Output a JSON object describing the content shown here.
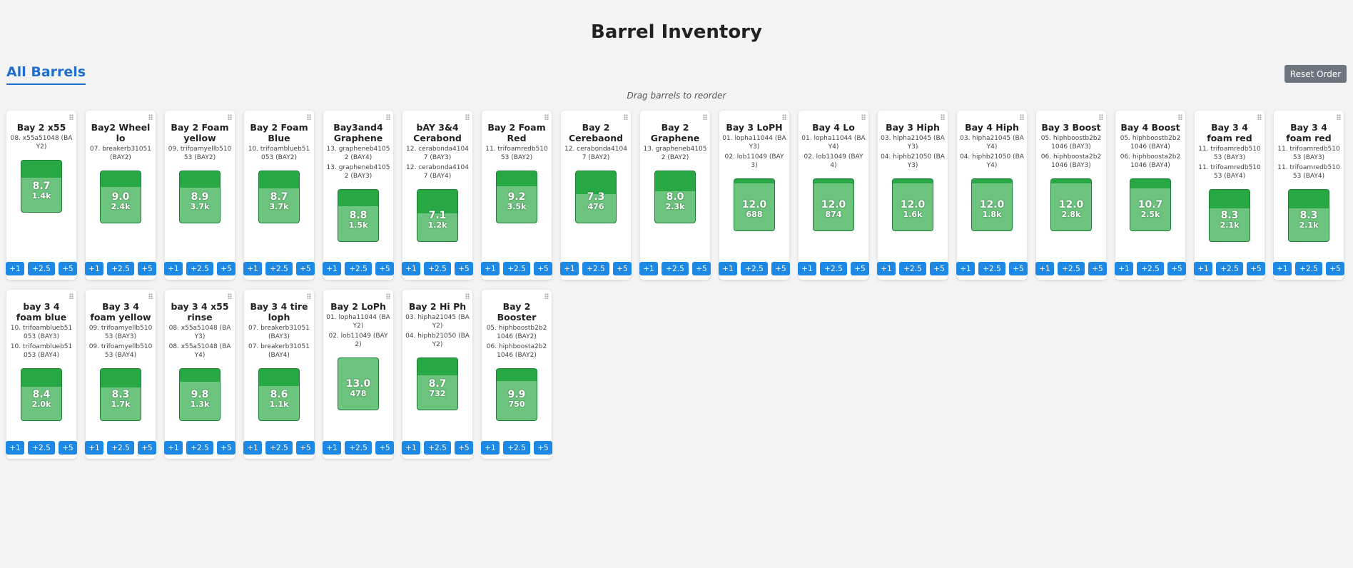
{
  "header": {
    "title": "Barrel Inventory",
    "tab": "All Barrels",
    "reset": "Reset Order",
    "hint": "Drag barrels to reorder"
  },
  "buttons": [
    "+1",
    "+2.5",
    "+5"
  ],
  "cards": [
    {
      "name": "Bay 2 x55",
      "items": [
        "08. x55a51048 (BAY2)"
      ],
      "level": "8.7",
      "count": "1.4k"
    },
    {
      "name": "Bay2 Wheel lo",
      "items": [
        "07. breakerb31051 (BAY2)"
      ],
      "level": "9.0",
      "count": "2.4k"
    },
    {
      "name": "Bay 2 Foam yellow",
      "items": [
        "09. trifoamyellb51053 (BAY2)"
      ],
      "level": "8.9",
      "count": "3.7k"
    },
    {
      "name": "Bay 2 Foam Blue",
      "items": [
        "10. trifoamblueb51053 (BAY2)"
      ],
      "level": "8.7",
      "count": "3.7k"
    },
    {
      "name": "Bay3and4 Graphene",
      "items": [
        "13. grapheneb41052 (BAY4)",
        "13. grapheneb41052 (BAY3)"
      ],
      "level": "8.8",
      "count": "1.5k"
    },
    {
      "name": "bAY 3&4 Cerabond",
      "items": [
        "12. cerabonda41047 (BAY3)",
        "12. cerabonda41047 (BAY4)"
      ],
      "level": "7.1",
      "count": "1.2k"
    },
    {
      "name": "Bay 2 Foam Red",
      "items": [
        "11. trifoamredb51053 (BAY2)"
      ],
      "level": "9.2",
      "count": "3.5k"
    },
    {
      "name": "Bay 2 Cerebaond",
      "items": [
        "12. cerabonda41047 (BAY2)"
      ],
      "level": "7.3",
      "count": "476"
    },
    {
      "name": "Bay 2 Graphene",
      "items": [
        "13. grapheneb41052 (BAY2)"
      ],
      "level": "8.0",
      "count": "2.3k"
    },
    {
      "name": "Bay 3 LoPH",
      "items": [
        "01. lopha11044 (BAY3)",
        "02. lob11049 (BAY3)"
      ],
      "level": "12.0",
      "count": "688"
    },
    {
      "name": "Bay 4 Lo",
      "items": [
        "01. lopha11044 (BAY4)",
        "02. lob11049 (BAY4)"
      ],
      "level": "12.0",
      "count": "874"
    },
    {
      "name": "Bay 3 Hiph",
      "items": [
        "03. hipha21045 (BAY3)",
        "04. hiphb21050 (BAY3)"
      ],
      "level": "12.0",
      "count": "1.6k"
    },
    {
      "name": "Bay 4 Hiph",
      "items": [
        "03. hipha21045 (BAY4)",
        "04. hiphb21050 (BAY4)"
      ],
      "level": "12.0",
      "count": "1.8k"
    },
    {
      "name": "Bay 3 Boost",
      "items": [
        "05. hiphboostb2b21046 (BAY3)",
        "06. hiphboosta2b21046 (BAY3)"
      ],
      "level": "12.0",
      "count": "2.8k"
    },
    {
      "name": "Bay 4 Boost",
      "items": [
        "05. hiphboostb2b21046 (BAY4)",
        "06. hiphboosta2b21046 (BAY4)"
      ],
      "level": "10.7",
      "count": "2.5k"
    },
    {
      "name": "Bay 3 4 foam red",
      "items": [
        "11. trifoamredb51053 (BAY3)",
        "11. trifoamredb51053 (BAY4)"
      ],
      "level": "8.3",
      "count": "2.1k"
    },
    {
      "name": "Bay 3 4 foam red",
      "items": [
        "11. trifoamredb51053 (BAY3)",
        "11. trifoamredb51053 (BAY4)"
      ],
      "level": "8.3",
      "count": "2.1k"
    },
    {
      "name": "bay 3 4 foam blue",
      "items": [
        "10. trifoamblueb51053 (BAY3)",
        "10. trifoamblueb51053 (BAY4)"
      ],
      "level": "8.4",
      "count": "2.0k"
    },
    {
      "name": "Bay 3 4 foam yellow",
      "items": [
        "09. trifoamyellb51053 (BAY3)",
        "09. trifoamyellb51053 (BAY4)"
      ],
      "level": "8.3",
      "count": "1.7k"
    },
    {
      "name": "bay 3 4 x55 rinse",
      "items": [
        "08. x55a51048 (BAY3)",
        "08. x55a51048 (BAY4)"
      ],
      "level": "9.8",
      "count": "1.3k"
    },
    {
      "name": "Bay 3 4 tire loph",
      "items": [
        "07. breakerb31051 (BAY3)",
        "07. breakerb31051 (BAY4)"
      ],
      "level": "8.6",
      "count": "1.1k"
    },
    {
      "name": "Bay 2 LoPh",
      "items": [
        "01. lopha11044 (BAY2)",
        "02. lob11049 (BAY2)"
      ],
      "level": "13.0",
      "count": "478"
    },
    {
      "name": "Bay 2 Hi Ph",
      "items": [
        "03. hipha21045 (BAY2)",
        "04. hiphb21050 (BAY2)"
      ],
      "level": "8.7",
      "count": "732"
    },
    {
      "name": "Bay 2 Booster",
      "items": [
        "05. hiphboostb2b21046 (BAY2)",
        "06. hiphboosta2b21046 (BAY2)"
      ],
      "level": "9.9",
      "count": "750"
    }
  ]
}
